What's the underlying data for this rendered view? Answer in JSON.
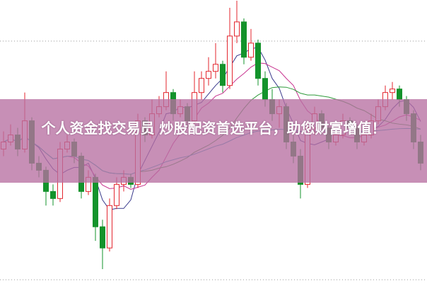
{
  "chart_data": {
    "type": "candlestick",
    "title": "",
    "grid": "dotted horizontal",
    "colors": {
      "up": "#e3262e",
      "down": "#13932b",
      "ma5": "#3a3a8c",
      "ma10": "#c8338f",
      "ma20": "#2e9a3a",
      "ma60": "#2a9fb8",
      "banner": "#b770a2"
    },
    "ylim": [
      0,
      400
    ],
    "candles": [
      [
        190,
        215,
        180,
        200
      ],
      [
        200,
        225,
        195,
        210
      ],
      [
        210,
        220,
        180,
        190
      ],
      [
        190,
        270,
        185,
        230
      ],
      [
        230,
        235,
        160,
        170
      ],
      [
        170,
        180,
        150,
        160
      ],
      [
        160,
        165,
        110,
        130
      ],
      [
        130,
        140,
        110,
        120
      ],
      [
        120,
        200,
        115,
        190
      ],
      [
        190,
        210,
        185,
        200
      ],
      [
        200,
        205,
        170,
        180
      ],
      [
        180,
        185,
        120,
        130
      ],
      [
        130,
        160,
        125,
        150
      ],
      [
        150,
        155,
        60,
        80
      ],
      [
        80,
        90,
        20,
        50
      ],
      [
        50,
        120,
        45,
        110
      ],
      [
        110,
        150,
        105,
        140
      ],
      [
        140,
        160,
        130,
        150
      ],
      [
        150,
        155,
        135,
        140
      ],
      [
        140,
        240,
        135,
        230
      ],
      [
        230,
        235,
        200,
        210
      ],
      [
        210,
        260,
        205,
        240
      ],
      [
        240,
        265,
        235,
        250
      ],
      [
        250,
        300,
        245,
        270
      ],
      [
        270,
        275,
        230,
        240
      ],
      [
        240,
        260,
        235,
        250
      ],
      [
        250,
        255,
        220,
        230
      ],
      [
        230,
        300,
        225,
        270
      ],
      [
        270,
        300,
        260,
        290
      ],
      [
        290,
        320,
        280,
        300
      ],
      [
        300,
        340,
        290,
        310
      ],
      [
        310,
        315,
        270,
        280
      ],
      [
        280,
        390,
        275,
        350
      ],
      [
        350,
        400,
        340,
        370
      ],
      [
        370,
        375,
        310,
        320
      ],
      [
        320,
        360,
        315,
        340
      ],
      [
        340,
        345,
        280,
        290
      ],
      [
        290,
        300,
        250,
        260
      ],
      [
        260,
        275,
        230,
        240
      ],
      [
        240,
        260,
        220,
        250
      ],
      [
        250,
        255,
        190,
        200
      ],
      [
        200,
        210,
        170,
        180
      ],
      [
        180,
        190,
        120,
        140
      ],
      [
        140,
        230,
        135,
        220
      ],
      [
        220,
        250,
        210,
        240
      ],
      [
        240,
        245,
        210,
        220
      ],
      [
        220,
        225,
        190,
        200
      ],
      [
        200,
        220,
        195,
        210
      ],
      [
        210,
        240,
        205,
        230
      ],
      [
        230,
        235,
        210,
        220
      ],
      [
        220,
        225,
        190,
        200
      ],
      [
        200,
        220,
        195,
        210
      ],
      [
        210,
        240,
        205,
        230
      ],
      [
        230,
        260,
        225,
        250
      ],
      [
        250,
        280,
        245,
        270
      ],
      [
        270,
        285,
        260,
        275
      ],
      [
        275,
        280,
        250,
        260
      ],
      [
        260,
        265,
        230,
        240
      ],
      [
        240,
        245,
        190,
        200
      ],
      [
        200,
        210,
        160,
        170
      ]
    ]
  },
  "banner": {
    "text": "个人资金找交易员 炒股配资首选平台，助您财富增值！"
  }
}
